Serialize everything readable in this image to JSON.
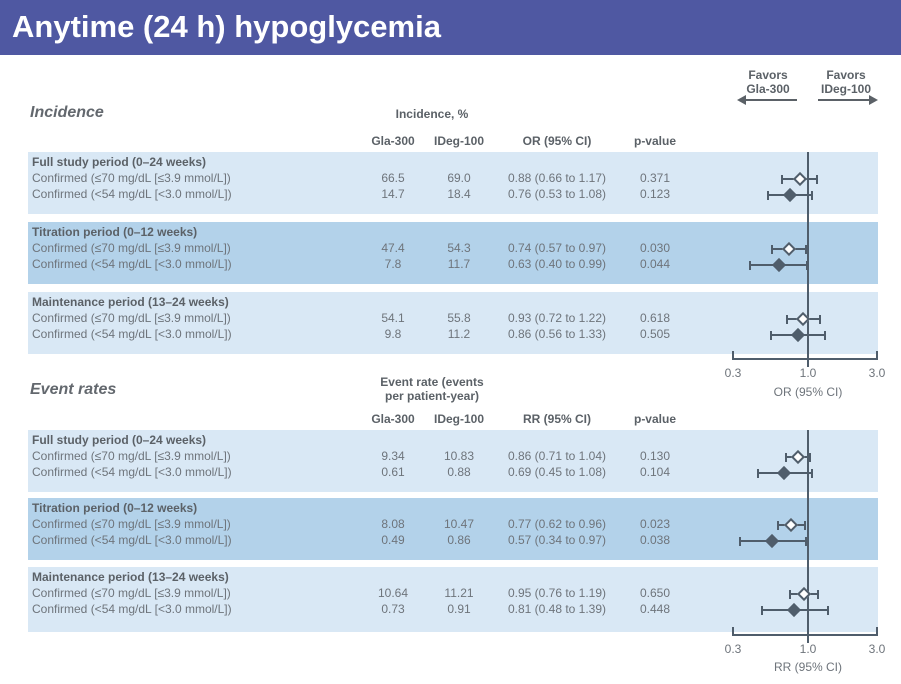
{
  "title_bar": {
    "title": "Anytime (24 h) hypoglycemia"
  },
  "favors_header": {
    "left_line1": "Favors",
    "left_line2": "Gla-300",
    "right_line1": "Favors",
    "right_line2": "IDeg-100"
  },
  "colors": {
    "title_bar_bg": "#4f58a2",
    "band_light": "#d9e8f5",
    "band_dark": "#b3d2ea",
    "table_text": "#6e747b",
    "header_text": "#5b6167",
    "plot_line": "#4f5d6b"
  },
  "incidence": {
    "heading": "Incidence",
    "measure_header_line1": "Incidence, %",
    "col_treatment1": "Gla-300",
    "col_treatment2": "IDeg-100",
    "col_effect": "OR (95% CI)",
    "col_p": "p-value",
    "axis": {
      "tick1": "0.3",
      "tick2": "1.0",
      "tick3": "3.0",
      "label": "OR (95% CI)"
    },
    "groups": [
      {
        "label": "Full study period (0–24 weeks)",
        "rows": [
          {
            "label": "Confirmed (≤70 mg/dL [≤3.9 mmol/L])",
            "v1": "66.5",
            "v2": "69.0",
            "est_ci": "0.88 (0.66 to 1.17)",
            "p": "0.371"
          },
          {
            "label": "Confirmed (<54 mg/dL [<3.0 mmol/L])",
            "v1": "14.7",
            "v2": "18.4",
            "est_ci": "0.76 (0.53 to 1.08)",
            "p": "0.123"
          }
        ]
      },
      {
        "label": "Titration period (0–12 weeks)",
        "rows": [
          {
            "label": "Confirmed (≤70 mg/dL [≤3.9 mmol/L])",
            "v1": "47.4",
            "v2": "54.3",
            "est_ci": "0.74 (0.57 to 0.97)",
            "p": "0.030"
          },
          {
            "label": "Confirmed (<54 mg/dL [<3.0 mmol/L])",
            "v1": "7.8",
            "v2": "11.7",
            "est_ci": "0.63 (0.40 to 0.99)",
            "p": "0.044"
          }
        ]
      },
      {
        "label": "Maintenance period (13–24 weeks)",
        "rows": [
          {
            "label": "Confirmed (≤70 mg/dL [≤3.9 mmol/L])",
            "v1": "54.1",
            "v2": "55.8",
            "est_ci": "0.93 (0.72 to 1.22)",
            "p": "0.618"
          },
          {
            "label": "Confirmed (<54 mg/dL [<3.0 mmol/L])",
            "v1": "9.8",
            "v2": "11.2",
            "est_ci": "0.86 (0.56 to 1.33)",
            "p": "0.505"
          }
        ]
      }
    ]
  },
  "event_rates": {
    "heading": "Event rates",
    "measure_header_line1": "Event rate (events",
    "measure_header_line2": "per patient-year)",
    "col_treatment1": "Gla-300",
    "col_treatment2": "IDeg-100",
    "col_effect": "RR (95% CI)",
    "col_p": "p-value",
    "axis": {
      "tick1": "0.3",
      "tick2": "1.0",
      "tick3": "3.0",
      "label": "RR (95% CI)"
    },
    "groups": [
      {
        "label": "Full study period (0–24 weeks)",
        "rows": [
          {
            "label": "Confirmed (≤70 mg/dL [≤3.9 mmol/L])",
            "v1": "9.34",
            "v2": "10.83",
            "est_ci": "0.86 (0.71 to 1.04)",
            "p": "0.130"
          },
          {
            "label": "Confirmed (<54 mg/dL [<3.0 mmol/L])",
            "v1": "0.61",
            "v2": "0.88",
            "est_ci": "0.69 (0.45 to 1.08)",
            "p": "0.104"
          }
        ]
      },
      {
        "label": "Titration period (0–12 weeks)",
        "rows": [
          {
            "label": "Confirmed (≤70 mg/dL [≤3.9 mmol/L])",
            "v1": "8.08",
            "v2": "10.47",
            "est_ci": "0.77 (0.62 to 0.96)",
            "p": "0.023"
          },
          {
            "label": "Confirmed (<54 mg/dL [<3.0 mmol/L])",
            "v1": "0.49",
            "v2": "0.86",
            "est_ci": "0.57 (0.34 to 0.97)",
            "p": "0.038"
          }
        ]
      },
      {
        "label": "Maintenance period (13–24 weeks)",
        "rows": [
          {
            "label": "Confirmed (≤70 mg/dL [≤3.9 mmol/L])",
            "v1": "10.64",
            "v2": "11.21",
            "est_ci": "0.95 (0.76 to 1.19)",
            "p": "0.650"
          },
          {
            "label": "Confirmed (<54 mg/dL [<3.0 mmol/L])",
            "v1": "0.73",
            "v2": "0.91",
            "est_ci": "0.81 (0.48 to 1.39)",
            "p": "0.448"
          }
        ]
      }
    ]
  },
  "chart_data": [
    {
      "type": "forest",
      "effect_measure": "OR",
      "scale": "log",
      "axis_ticks": [
        0.3,
        1.0,
        3.0
      ],
      "axis_label": "OR (95% CI)",
      "reference_line": 1.0,
      "favors_left": "Favors Gla-300",
      "favors_right": "Favors IDeg-100",
      "points": [
        {
          "group": "Full study period (0–24 weeks)",
          "label": "Confirmed (≤70 mg/dL [≤3.9 mmol/L])",
          "est": 0.88,
          "lo": 0.66,
          "hi": 1.17,
          "marker": "open"
        },
        {
          "group": "Full study period (0–24 weeks)",
          "label": "Confirmed (<54 mg/dL [<3.0 mmol/L])",
          "est": 0.76,
          "lo": 0.53,
          "hi": 1.08,
          "marker": "filled"
        },
        {
          "group": "Titration period (0–12 weeks)",
          "label": "Confirmed (≤70 mg/dL [≤3.9 mmol/L])",
          "est": 0.74,
          "lo": 0.57,
          "hi": 0.97,
          "marker": "open"
        },
        {
          "group": "Titration period (0–12 weeks)",
          "label": "Confirmed (<54 mg/dL [<3.0 mmol/L])",
          "est": 0.63,
          "lo": 0.4,
          "hi": 0.99,
          "marker": "filled"
        },
        {
          "group": "Maintenance period (13–24 weeks)",
          "label": "Confirmed (≤70 mg/dL [≤3.9 mmol/L])",
          "est": 0.93,
          "lo": 0.72,
          "hi": 1.22,
          "marker": "open"
        },
        {
          "group": "Maintenance period (13–24 weeks)",
          "label": "Confirmed (<54 mg/dL [<3.0 mmol/L])",
          "est": 0.86,
          "lo": 0.56,
          "hi": 1.33,
          "marker": "filled"
        }
      ]
    },
    {
      "type": "forest",
      "effect_measure": "RR",
      "scale": "log",
      "axis_ticks": [
        0.3,
        1.0,
        3.0
      ],
      "axis_label": "RR (95% CI)",
      "reference_line": 1.0,
      "favors_left": "Favors Gla-300",
      "favors_right": "Favors IDeg-100",
      "points": [
        {
          "group": "Full study period (0–24 weeks)",
          "label": "Confirmed (≤70 mg/dL [≤3.9 mmol/L])",
          "est": 0.86,
          "lo": 0.71,
          "hi": 1.04,
          "marker": "open"
        },
        {
          "group": "Full study period (0–24 weeks)",
          "label": "Confirmed (<54 mg/dL [<3.0 mmol/L])",
          "est": 0.69,
          "lo": 0.45,
          "hi": 1.08,
          "marker": "filled"
        },
        {
          "group": "Titration period (0–12 weeks)",
          "label": "Confirmed (≤70 mg/dL [≤3.9 mmol/L])",
          "est": 0.77,
          "lo": 0.62,
          "hi": 0.96,
          "marker": "open"
        },
        {
          "group": "Titration period (0–12 weeks)",
          "label": "Confirmed (<54 mg/dL [<3.0 mmol/L])",
          "est": 0.57,
          "lo": 0.34,
          "hi": 0.97,
          "marker": "filled"
        },
        {
          "group": "Maintenance period (13–24 weeks)",
          "label": "Confirmed (≤70 mg/dL [≤3.9 mmol/L])",
          "est": 0.95,
          "lo": 0.76,
          "hi": 1.19,
          "marker": "open"
        },
        {
          "group": "Maintenance period (13–24 weeks)",
          "label": "Confirmed (<54 mg/dL [<3.0 mmol/L])",
          "est": 0.81,
          "lo": 0.48,
          "hi": 1.39,
          "marker": "filled"
        }
      ]
    }
  ]
}
